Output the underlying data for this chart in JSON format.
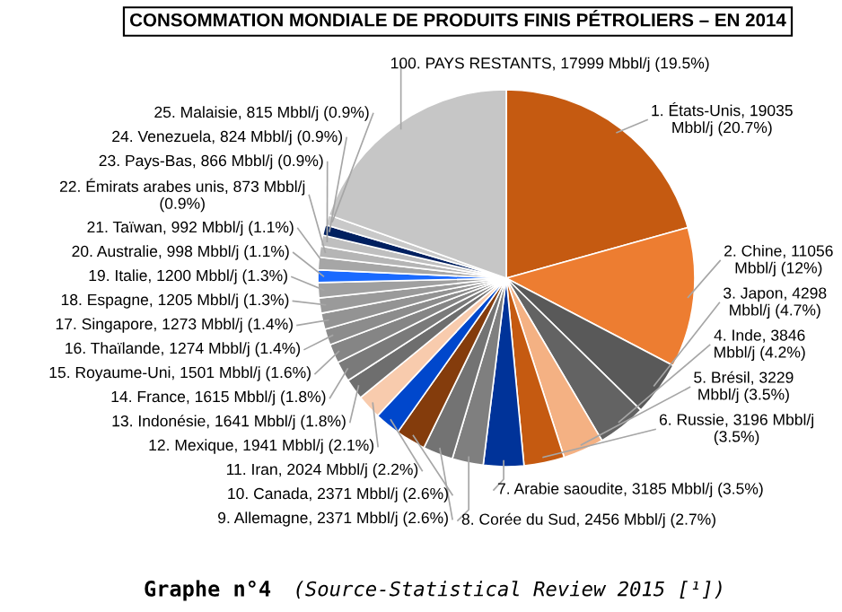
{
  "chart_data": {
    "type": "pie",
    "title": "CONSOMMATION MONDIALE DE PRODUITS FINIS PÉTROLIERS – EN 2014",
    "categories": [
      "1. États-Unis",
      "2. Chine",
      "3. Japon",
      "4. Inde",
      "5. Brésil",
      "6. Russie",
      "7. Arabie saoudite",
      "8. Corée du Sud",
      "9. Allemagne",
      "10. Canada",
      "11. Iran",
      "12. Mexique",
      "13. Indonésie",
      "14. France",
      "15. Royaume-Uni",
      "16. Thaïlande",
      "17. Singapore",
      "18. Espagne",
      "19. Italie",
      "20. Australie",
      "21. Taïwan",
      "22. Émirats arabes unis",
      "23. Pays-Bas",
      "24. Venezuela",
      "25. Malaisie",
      "100. PAYS RESTANTS"
    ],
    "values": [
      19035,
      11056,
      4298,
      3846,
      3229,
      3196,
      3185,
      2456,
      2371,
      2371,
      2024,
      1941,
      1641,
      1615,
      1501,
      1274,
      1273,
      1205,
      1200,
      998,
      992,
      873,
      866,
      824,
      815,
      17999
    ],
    "value_labels": [
      "19035 Mbbl/j (20.7%)",
      "11056 Mbbl/j (12%)",
      "4298 Mbbl/j (4.7%)",
      "3846 Mbbl/j (4.2%)",
      "3229 Mbbl/j (3.5%)",
      "3196 Mbbl/j (3.5%)",
      "3185 Mbbl/j (3.5%)",
      "2456 Mbbl/j (2.7%)",
      "2371 Mbbl/j (2.6%)",
      "2371 Mbbl/j (2.6%)",
      "2024 Mbbl/j (2.2%)",
      "1941 Mbbl/j (2.1%)",
      "1641 Mbbl/j (1.8%)",
      "1615 Mbbl/j (1.8%)",
      "1501 Mbbl/j (1.6%)",
      "1274 Mbbl/j (1.4%)",
      "1273 Mbbl/j (1.4%)",
      "1205 Mbbl/j (1.3%)",
      "1200 Mbbl/j (1.3%)",
      "998 Mbbl/j (1.1%)",
      "992 Mbbl/j (1.1%)",
      "873 Mbbl/j (0.9%)",
      "866 Mbbl/j (0.9%)",
      "824 Mbbl/j (0.9%)",
      "815 Mbbl/j (0.9%)",
      "17999 Mbbl/j (19.5%)"
    ],
    "colors": [
      "#c55a11",
      "#ed7d31",
      "#595959",
      "#636363",
      "#f4b183",
      "#c55a11",
      "#003399",
      "#7f7f7f",
      "#737373",
      "#843c0c",
      "#0047cc",
      "#f8cbad",
      "#6e6e6e",
      "#7a7a7a",
      "#858585",
      "#8c8c8c",
      "#939393",
      "#9a9a9a",
      "#a0a0a0",
      "#1a6aff",
      "#a6a6a6",
      "#b5b5b5",
      "#bfbfbf",
      "#002060",
      "#c9c9c9",
      "#c6c6c6"
    ],
    "annotations": [
      "Graphe n°4",
      "(Source-Statistical Review 2015 [¹])"
    ],
    "legend": false
  }
}
